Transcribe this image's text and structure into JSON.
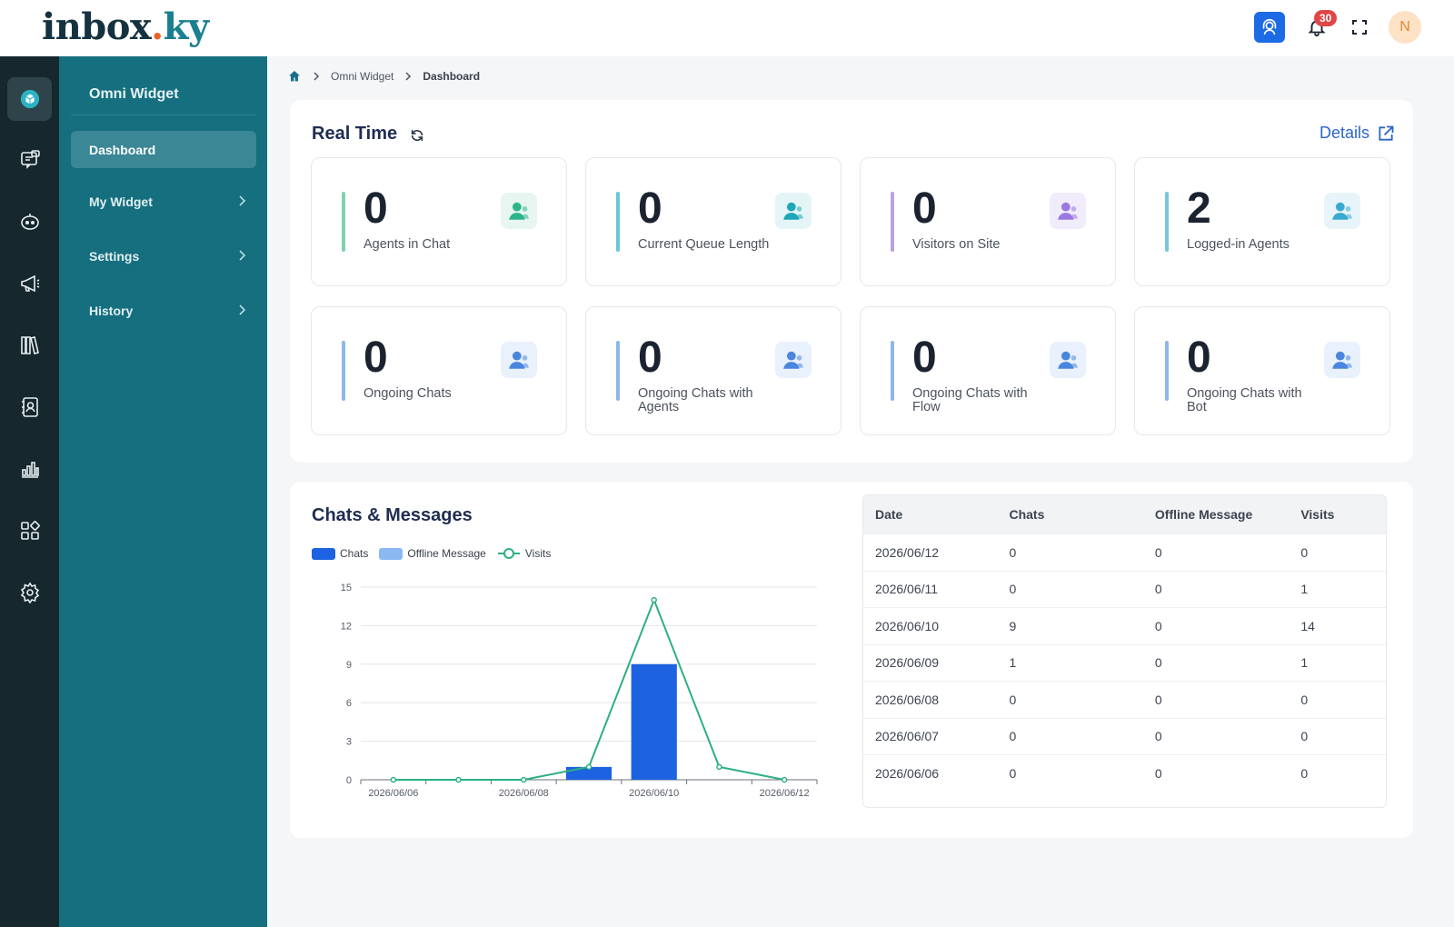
{
  "header": {
    "logo_part1": "inbox",
    "logo_dot": ".",
    "logo_part2": "ky",
    "notifications_count": "30",
    "avatar_initial": "N"
  },
  "rail": {
    "icons": [
      "box-icon",
      "chat-window-icon",
      "bot-icon",
      "megaphone-icon",
      "library-icon",
      "contacts-icon",
      "bar-chart-icon",
      "apps-grid-icon",
      "gear-icon"
    ]
  },
  "sidebar": {
    "title": "Omni Widget",
    "items": [
      {
        "label": "Dashboard",
        "active": true
      },
      {
        "label": "My Widget"
      },
      {
        "label": "Settings"
      },
      {
        "label": "History"
      }
    ]
  },
  "breadcrumb": {
    "items": [
      "Omni Widget",
      "Dashboard"
    ]
  },
  "realtime": {
    "title": "Real Time",
    "details_label": "Details",
    "stats": [
      {
        "value": "0",
        "label": "Agents in Chat",
        "bar_color": "#7fd1b0",
        "icon": "agent-headset-icon",
        "icon_color": "#2bb58a",
        "icon_bg": "#e7f6f0"
      },
      {
        "value": "0",
        "label": "Current Queue Length",
        "bar_color": "#6cc7d4",
        "icon": "users-queue-icon",
        "icon_color": "#1fa7b8",
        "icon_bg": "#e5f5f7"
      },
      {
        "value": "0",
        "label": "Visitors on Site",
        "bar_color": "#b9a2e8",
        "icon": "visitors-icon",
        "icon_color": "#9b78e0",
        "icon_bg": "#f1ecfb"
      },
      {
        "value": "2",
        "label": "Logged-in Agents",
        "bar_color": "#78c6dd",
        "icon": "agent-check-icon",
        "icon_color": "#3aa9cf",
        "icon_bg": "#e7f4f9"
      },
      {
        "value": "0",
        "label": "Ongoing Chats",
        "bar_color": "#8fb6ec",
        "icon": "ongoing-chat-icon",
        "icon_color": "#4a86de",
        "icon_bg": "#e9f1fc"
      },
      {
        "value": "0",
        "label": "Ongoing Chats with Agents",
        "bar_color": "#8fb6ec",
        "icon": "agent-chat-icon",
        "icon_color": "#4a86de",
        "icon_bg": "#e9f1fc"
      },
      {
        "value": "0",
        "label": "Ongoing Chats with Flow",
        "bar_color": "#8fb6ec",
        "icon": "flow-icon",
        "icon_color": "#4a86de",
        "icon_bg": "#e9f1fc"
      },
      {
        "value": "0",
        "label": "Ongoing Chats with Bot",
        "bar_color": "#8fb6ec",
        "icon": "bot-icon",
        "icon_color": "#4a86de",
        "icon_bg": "#e9f1fc"
      }
    ]
  },
  "chats_messages": {
    "title": "Chats & Messages",
    "legend": [
      {
        "name": "Chats",
        "color": "#1d62e0"
      },
      {
        "name": "Offline Message",
        "color": "#8ab8f3"
      },
      {
        "name": "Visits",
        "color": "#2cb080"
      }
    ]
  },
  "chart_data": {
    "type": "bar",
    "x": [
      "2026/06/06",
      "2026/06/07",
      "2026/06/08",
      "2026/06/09",
      "2026/06/10",
      "2026/06/11",
      "2026/06/12"
    ],
    "x_tick_labels": [
      "2026/06/06",
      "2026/06/08",
      "2026/06/10",
      "2026/06/12"
    ],
    "series": [
      {
        "name": "Chats",
        "type": "bar",
        "values": [
          0,
          0,
          0,
          1,
          9,
          0,
          0
        ]
      },
      {
        "name": "Offline Message",
        "type": "bar",
        "values": [
          0,
          0,
          0,
          0,
          0,
          0,
          0
        ]
      },
      {
        "name": "Visits",
        "type": "line",
        "values": [
          0,
          0,
          0,
          1,
          14,
          1,
          0
        ]
      }
    ],
    "ylim": [
      0,
      15
    ],
    "y_ticks": [
      0,
      3,
      6,
      9,
      12,
      15
    ],
    "grid": true,
    "legend": "top-left"
  },
  "table": {
    "headers": [
      "Date",
      "Chats",
      "Offline Message",
      "Visits"
    ],
    "rows": [
      [
        "2026/06/12",
        "0",
        "0",
        "0"
      ],
      [
        "2026/06/11",
        "0",
        "0",
        "1"
      ],
      [
        "2026/06/10",
        "9",
        "0",
        "14"
      ],
      [
        "2026/06/09",
        "1",
        "0",
        "1"
      ],
      [
        "2026/06/08",
        "0",
        "0",
        "0"
      ],
      [
        "2026/06/07",
        "0",
        "0",
        "0"
      ],
      [
        "2026/06/06",
        "0",
        "0",
        "0"
      ]
    ]
  }
}
